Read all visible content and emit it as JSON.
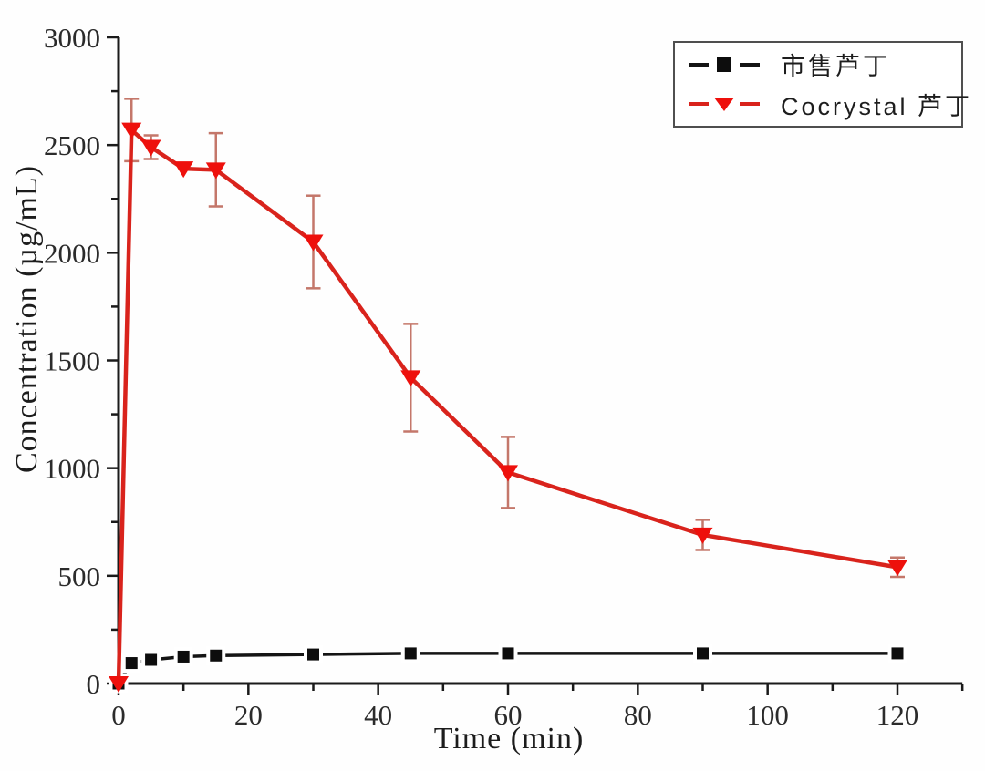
{
  "axes": {
    "xlabel": "Time (min)",
    "ylabel": "Concentration (µg/mL)"
  },
  "chart_data": {
    "type": "line",
    "title": "",
    "xlabel": "Time (min)",
    "ylabel": "Concentration (µg/mL)",
    "x": [
      0,
      2,
      5,
      10,
      15,
      30,
      45,
      60,
      90,
      120
    ],
    "series": [
      {
        "name": "市售芦丁",
        "marker": "square",
        "line_color": "#141414",
        "marker_color": "#0d0d0d",
        "error_color": "#141414",
        "values": [
          0,
          95,
          110,
          125,
          130,
          135,
          140,
          140,
          140,
          140
        ],
        "errors": [
          0,
          0,
          0,
          0,
          0,
          0,
          0,
          0,
          0,
          0
        ]
      },
      {
        "name": "Cocrystal 芦丁",
        "marker": "triangle-down",
        "line_color": "#d9231c",
        "marker_color": "#ee100c",
        "error_color": "#c4776a",
        "values": [
          0,
          2570,
          2490,
          2390,
          2385,
          2050,
          1420,
          980,
          690,
          540
        ],
        "errors": [
          0,
          145,
          55,
          0,
          170,
          215,
          250,
          165,
          70,
          45
        ]
      }
    ],
    "xlim": [
      0,
      130
    ],
    "ylim": [
      0,
      3000
    ],
    "x_major_ticks": [
      0,
      20,
      40,
      60,
      80,
      100,
      120
    ],
    "x_minor_step": 10,
    "y_major_ticks": [
      0,
      500,
      1000,
      1500,
      2000,
      2500,
      3000
    ],
    "y_minor_step": 250,
    "grid": false,
    "legend_position": "top-right"
  }
}
